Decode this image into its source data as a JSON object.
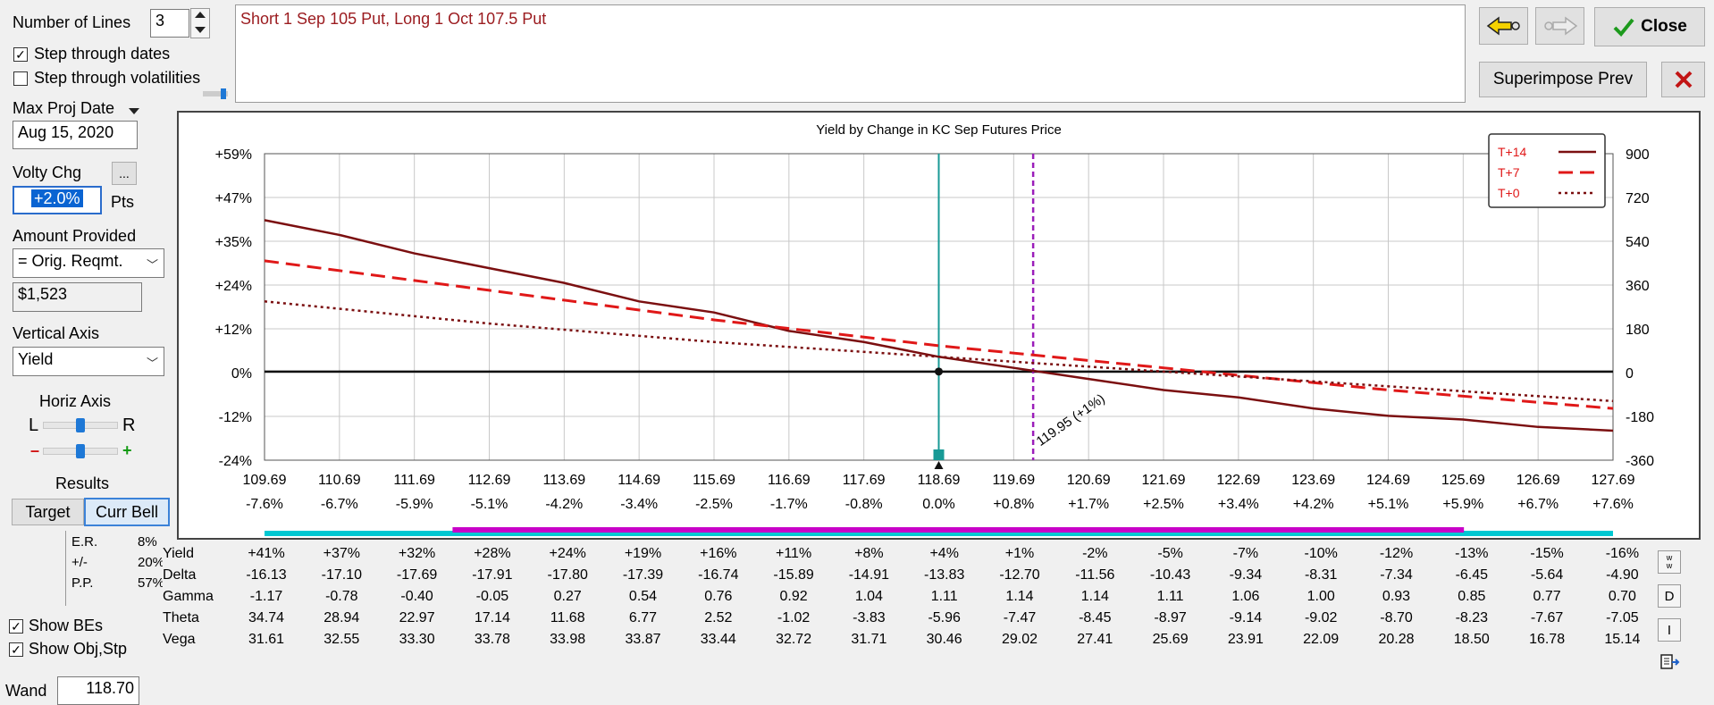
{
  "controls": {
    "number_of_lines_label": "Number of Lines",
    "number_of_lines_value": "3",
    "step_dates_label": "Step through dates",
    "step_dates_checked": true,
    "step_vols_label": "Step through volatilities",
    "step_vols_checked": false,
    "max_proj_date_label": "Max Proj Date",
    "max_proj_date_value": "Aug 15, 2020",
    "volty_chg_label": "Volty Chg",
    "volty_chg_btn": "...",
    "volty_chg_value": "+2.0%",
    "volty_chg_unit": "Pts",
    "amount_provided_label": "Amount Provided",
    "amount_provided_value": "= Orig. Reqmt.",
    "amount_value": "$1,523",
    "vertical_axis_label": "Vertical Axis",
    "vertical_axis_value": "Yield",
    "horiz_axis_label": "Horiz Axis",
    "horiz_l": "L",
    "horiz_r": "R",
    "horiz_minus": "–",
    "horiz_plus": "+",
    "results_label": "Results",
    "target_tab": "Target",
    "curr_bell_tab": "Curr Bell",
    "results": [
      {
        "label": "E.R.",
        "value": "8%"
      },
      {
        "label": "+/-",
        "value": "20%"
      },
      {
        "label": "P.P.",
        "value": "57%"
      }
    ],
    "show_bes_label": "Show BEs",
    "show_bes_checked": true,
    "show_obj_label": "Show Obj,Stp",
    "show_obj_checked": true,
    "wand_label": "Wand",
    "wand_value": "118.70"
  },
  "description": "Short 1 Sep 105 Put, Long 1 Oct 107.5 Put",
  "buttons": {
    "close": "Close",
    "superimpose": "Superimpose Prev",
    "side": [
      "w\nw",
      "D",
      "I"
    ]
  },
  "colors": {
    "series_dark": "#7b0f10",
    "series_red": "#e01818",
    "teal": "#189a96",
    "purple": "#9b1dba",
    "magenta_bar": "#c800c8",
    "cyan_bar": "#00c8d2",
    "text_red": "#9b1b1f"
  },
  "chart_data": {
    "type": "line",
    "title": "Yield by Change in KC Sep Futures Price",
    "x_ticks": [
      "109.69",
      "110.69",
      "111.69",
      "112.69",
      "113.69",
      "114.69",
      "115.69",
      "116.69",
      "117.69",
      "118.69",
      "119.69",
      "120.69",
      "121.69",
      "122.69",
      "123.69",
      "124.69",
      "125.69",
      "126.69",
      "127.69"
    ],
    "x_pct_ticks": [
      "-7.6%",
      "-6.7%",
      "-5.9%",
      "-5.1%",
      "-4.2%",
      "-3.4%",
      "-2.5%",
      "-1.7%",
      "-0.8%",
      "0.0%",
      "+0.8%",
      "+1.7%",
      "+2.5%",
      "+3.4%",
      "+4.2%",
      "+5.1%",
      "+5.9%",
      "+6.7%",
      "+7.6%"
    ],
    "xlim": [
      109.69,
      127.69
    ],
    "y_left_ticks": [
      "+59%",
      "+47%",
      "+35%",
      "+24%",
      "+12%",
      "0%",
      "-12%",
      "-24%"
    ],
    "y_right_ticks": [
      "900",
      "720",
      "540",
      "360",
      "180",
      "0",
      "-180",
      "-360"
    ],
    "ylim": [
      -24,
      59
    ],
    "current_price": 118.69,
    "target_price": 119.95,
    "target_label": "119.95 (+1%)",
    "legend_position": "top-right",
    "series": [
      {
        "name": "T+14",
        "style": "solid",
        "x": [
          109.69,
          110.69,
          111.69,
          112.69,
          113.69,
          114.69,
          115.69,
          116.69,
          117.69,
          118.69,
          119.69,
          120.69,
          121.69,
          122.69,
          123.69,
          124.69,
          125.69,
          126.69,
          127.69
        ],
        "y": [
          41,
          37,
          32,
          28,
          24,
          19,
          16,
          11,
          8,
          4,
          1,
          -2,
          -5,
          -7,
          -10,
          -12,
          -13,
          -15,
          -16
        ]
      },
      {
        "name": "T+7",
        "style": "dashed",
        "x": [
          109.69,
          112.69,
          115.69,
          118.69,
          121.69,
          124.69,
          127.69
        ],
        "y": [
          30,
          22,
          14,
          7,
          1,
          -5,
          -10
        ]
      },
      {
        "name": "T+0",
        "style": "dotted",
        "x": [
          109.69,
          112.69,
          115.69,
          118.69,
          121.69,
          124.69,
          127.69
        ],
        "y": [
          19,
          13,
          8,
          4,
          0,
          -4,
          -8
        ]
      }
    ],
    "range_bar": {
      "start": 112.2,
      "end": 125.7
    }
  },
  "greeks": {
    "rows": [
      {
        "name": "Yield",
        "values": [
          "+41%",
          "+37%",
          "+32%",
          "+28%",
          "+24%",
          "+19%",
          "+16%",
          "+11%",
          "+8%",
          "+4%",
          "+1%",
          "-2%",
          "-5%",
          "-7%",
          "-10%",
          "-12%",
          "-13%",
          "-15%",
          "-16%"
        ]
      },
      {
        "name": "Delta",
        "values": [
          "-16.13",
          "-17.10",
          "-17.69",
          "-17.91",
          "-17.80",
          "-17.39",
          "-16.74",
          "-15.89",
          "-14.91",
          "-13.83",
          "-12.70",
          "-11.56",
          "-10.43",
          "-9.34",
          "-8.31",
          "-7.34",
          "-6.45",
          "-5.64",
          "-4.90"
        ]
      },
      {
        "name": "Gamma",
        "values": [
          "-1.17",
          "-0.78",
          "-0.40",
          "-0.05",
          "0.27",
          "0.54",
          "0.76",
          "0.92",
          "1.04",
          "1.11",
          "1.14",
          "1.14",
          "1.11",
          "1.06",
          "1.00",
          "0.93",
          "0.85",
          "0.77",
          "0.70"
        ]
      },
      {
        "name": "Theta",
        "values": [
          "34.74",
          "28.94",
          "22.97",
          "17.14",
          "11.68",
          "6.77",
          "2.52",
          "-1.02",
          "-3.83",
          "-5.96",
          "-7.47",
          "-8.45",
          "-8.97",
          "-9.14",
          "-9.02",
          "-8.70",
          "-8.23",
          "-7.67",
          "-7.05"
        ]
      },
      {
        "name": "Vega",
        "values": [
          "31.61",
          "32.55",
          "33.30",
          "33.78",
          "33.98",
          "33.87",
          "33.44",
          "32.72",
          "31.71",
          "30.46",
          "29.02",
          "27.41",
          "25.69",
          "23.91",
          "22.09",
          "20.28",
          "18.50",
          "16.78",
          "15.14"
        ]
      }
    ]
  }
}
